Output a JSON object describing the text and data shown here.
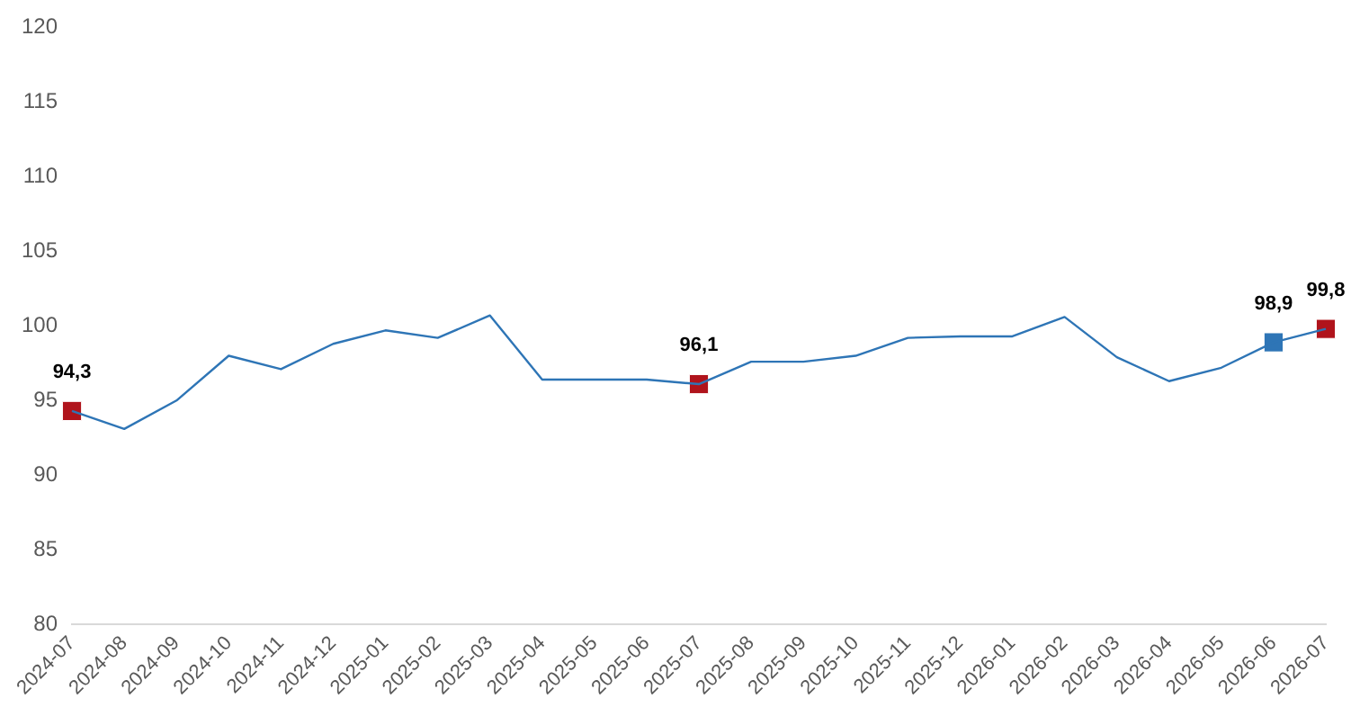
{
  "chart_data": {
    "type": "line",
    "categories": [
      "2024-07",
      "2024-08",
      "2024-09",
      "2024-10",
      "2024-11",
      "2024-12",
      "2025-01",
      "2025-02",
      "2025-03",
      "2025-04",
      "2025-05",
      "2025-06",
      "2025-07",
      "2025-08",
      "2025-09",
      "2025-10",
      "2025-11",
      "2025-12",
      "2026-01",
      "2026-02",
      "2026-03",
      "2026-04",
      "2026-05",
      "2026-06",
      "2026-07"
    ],
    "series": [
      {
        "color": "#2e75b6",
        "marker": "none",
        "values": [
          94.3,
          93.1,
          95.0,
          98.0,
          97.1,
          98.8,
          99.7,
          99.2,
          100.7,
          96.4,
          96.4,
          96.4,
          96.1,
          97.6,
          97.6,
          98.0,
          99.2,
          99.3,
          99.3,
          100.6,
          97.9,
          96.3,
          97.2,
          98.9,
          99.8
        ]
      },
      {
        "type": "scatter",
        "color": "#b0141c",
        "marker": "square",
        "values": [
          94.3,
          null,
          null,
          null,
          null,
          null,
          null,
          null,
          null,
          null,
          null,
          null,
          96.1,
          null,
          null,
          null,
          null,
          null,
          null,
          null,
          null,
          null,
          null,
          null,
          99.8
        ],
        "value_labels": [
          "94,3",
          null,
          null,
          null,
          null,
          null,
          null,
          null,
          null,
          null,
          null,
          null,
          "96,1",
          null,
          null,
          null,
          null,
          null,
          null,
          null,
          null,
          null,
          null,
          null,
          "99,8"
        ]
      },
      {
        "type": "scatter",
        "color": "#2e75b6",
        "marker": "square",
        "values": [
          null,
          null,
          null,
          null,
          null,
          null,
          null,
          null,
          null,
          null,
          null,
          null,
          null,
          null,
          null,
          null,
          null,
          null,
          null,
          null,
          null,
          null,
          null,
          98.9,
          null
        ],
        "value_labels": [
          null,
          null,
          null,
          null,
          null,
          null,
          null,
          null,
          null,
          null,
          null,
          null,
          null,
          null,
          null,
          null,
          null,
          null,
          null,
          null,
          null,
          null,
          null,
          "98,9",
          null
        ]
      }
    ],
    "ylim": [
      80,
      120
    ],
    "yticks": [
      80,
      85,
      90,
      95,
      100,
      105,
      110,
      115,
      120
    ],
    "grid": false,
    "legend": false
  }
}
